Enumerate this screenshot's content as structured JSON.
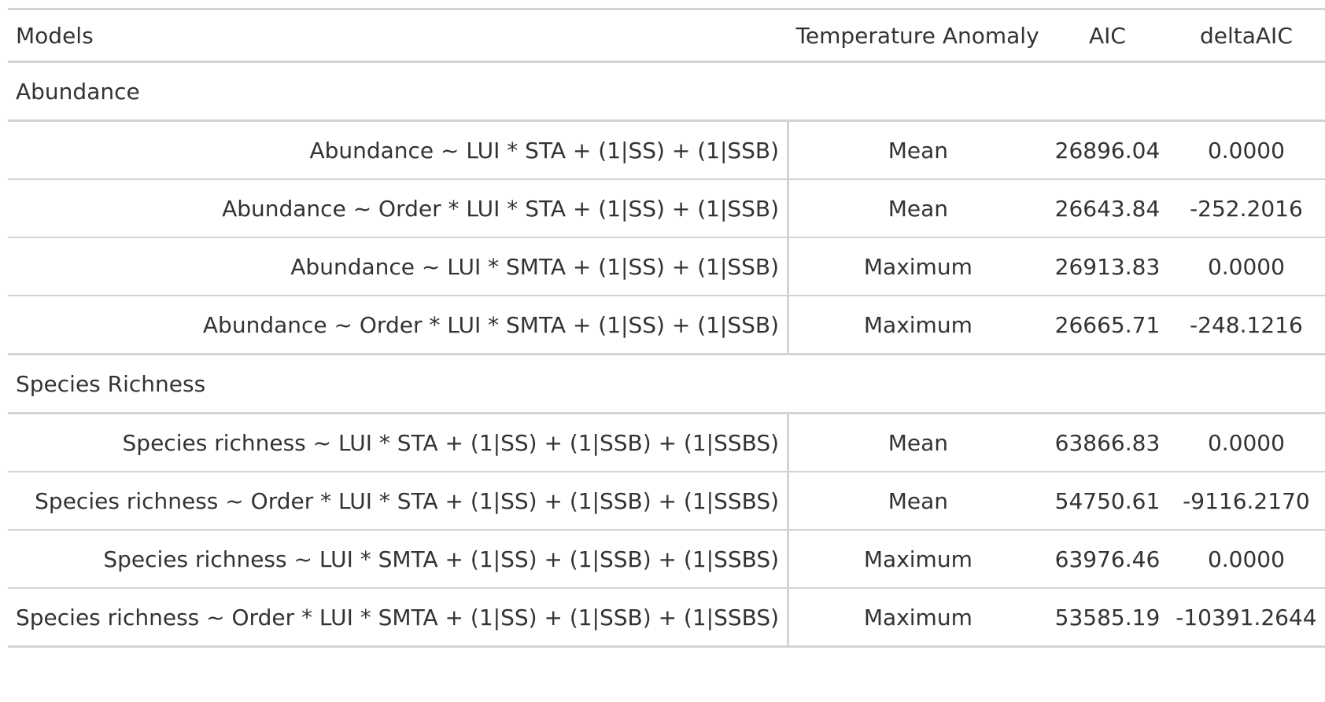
{
  "headers": {
    "models": "Models",
    "temperature_anomaly": "Temperature Anomaly",
    "aic": "AIC",
    "delta_aic": "deltaAIC"
  },
  "groups": [
    {
      "label": "Abundance",
      "rows": [
        {
          "model": "Abundance ~ LUI * STA + (1|SS) + (1|SSB)",
          "temp": "Mean",
          "aic": "26896.04",
          "delta": "0.0000"
        },
        {
          "model": "Abundance ~ Order * LUI * STA + (1|SS) + (1|SSB)",
          "temp": "Mean",
          "aic": "26643.84",
          "delta": "-252.2016"
        },
        {
          "model": "Abundance ~ LUI * SMTA + (1|SS) + (1|SSB)",
          "temp": "Maximum",
          "aic": "26913.83",
          "delta": "0.0000"
        },
        {
          "model": "Abundance ~ Order * LUI * SMTA + (1|SS) + (1|SSB)",
          "temp": "Maximum",
          "aic": "26665.71",
          "delta": "-248.1216"
        }
      ]
    },
    {
      "label": "Species Richness",
      "rows": [
        {
          "model": "Species richness ~ LUI * STA + (1|SS) + (1|SSB) + (1|SSBS)",
          "temp": "Mean",
          "aic": "63866.83",
          "delta": "0.0000"
        },
        {
          "model": "Species richness ~ Order * LUI * STA + (1|SS) + (1|SSB) + (1|SSBS)",
          "temp": "Mean",
          "aic": "54750.61",
          "delta": "-9116.2170"
        },
        {
          "model": "Species richness ~ LUI * SMTA + (1|SS) + (1|SSB) + (1|SSBS)",
          "temp": "Maximum",
          "aic": "63976.46",
          "delta": "0.0000"
        },
        {
          "model": "Species richness ~ Order * LUI * SMTA + (1|SS) + (1|SSB) + (1|SSBS)",
          "temp": "Maximum",
          "aic": "53585.19",
          "delta": "-10391.2644"
        }
      ]
    }
  ]
}
